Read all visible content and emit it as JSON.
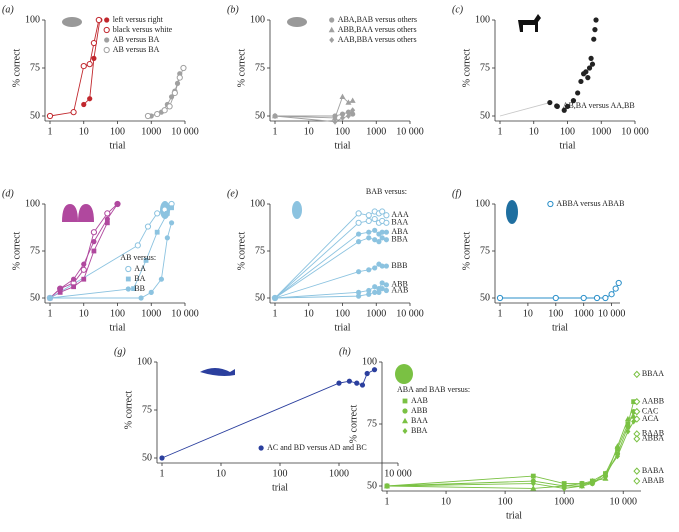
{
  "chart_data": [
    {
      "type": "line",
      "panel_label": "(a)",
      "x_label": "trial",
      "y_label": "% correct",
      "xscale": "log",
      "xlim": [
        1,
        10000
      ],
      "xticks": [
        1,
        10,
        100,
        1000,
        {
          "value": 10000,
          "label": "10 000"
        }
      ],
      "ylim": [
        50,
        100
      ],
      "yticks": [
        50,
        75,
        100
      ],
      "legend": "upper-right",
      "series": [
        {
          "name": "left versus right",
          "color": "#c1272d",
          "marker": "circle",
          "x": [
            10,
            15,
            20,
            30
          ],
          "values": [
            56,
            59,
            80,
            100
          ]
        },
        {
          "name": "black versus white",
          "color": "#c1272d",
          "marker": "open-circle",
          "x": [
            1,
            5,
            10,
            15,
            20,
            28
          ],
          "values": [
            50,
            52,
            76,
            77,
            88,
            100
          ]
        },
        {
          "name": "AB versus BA",
          "color": "#a0a0a0",
          "marker": "circle",
          "x": [
            1000,
            2000,
            3000,
            4000,
            5000,
            6000,
            7000
          ],
          "values": [
            50,
            52,
            56,
            60,
            63,
            67,
            72
          ]
        },
        {
          "name": "AB versus BA",
          "color": "#a0a0a0",
          "marker": "open-circle",
          "x": [
            800,
            1500,
            2500,
            3500,
            5000,
            7000,
            9000
          ],
          "values": [
            50,
            51,
            53,
            55,
            62,
            70,
            75
          ]
        }
      ]
    },
    {
      "type": "line",
      "panel_label": "(b)",
      "x_label": "trial",
      "y_label": "% correct",
      "xscale": "log",
      "xlim": [
        1,
        10000
      ],
      "xticks": [
        1,
        10,
        100,
        1000,
        {
          "value": 10000,
          "label": "10 000"
        }
      ],
      "ylim": [
        50,
        100
      ],
      "yticks": [
        50,
        75,
        100
      ],
      "legend": "upper-right",
      "series": [
        {
          "name": "ABA,BAB versus others",
          "color": "#a0a0a0",
          "marker": "circle",
          "x": [
            1,
            60,
            100,
            150,
            200
          ],
          "values": [
            50,
            50,
            51,
            52,
            51
          ]
        },
        {
          "name": "ABB,BAA versus others",
          "color": "#a0a0a0",
          "marker": "triangle",
          "x": [
            1,
            60,
            100,
            150,
            200
          ],
          "values": [
            50,
            49,
            60,
            57,
            58
          ]
        },
        {
          "name": "AAB,BBA versus others",
          "color": "#a0a0a0",
          "marker": "diamond",
          "x": [
            1,
            60,
            100,
            150,
            200
          ],
          "values": [
            50,
            47,
            49,
            50,
            53
          ]
        }
      ]
    },
    {
      "type": "line",
      "panel_label": "(c)",
      "x_label": "trial",
      "y_label": "% correct",
      "xscale": "log",
      "xlim": [
        1,
        10000
      ],
      "xticks": [
        1,
        10,
        100,
        1000,
        {
          "value": 10000,
          "label": "10 000"
        }
      ],
      "ylim": [
        50,
        100
      ],
      "yticks": [
        50,
        75,
        100
      ],
      "legend": "lower-right",
      "series": [
        {
          "color": "#c8c8c8",
          "marker": "none",
          "x": [
            1,
            30
          ],
          "values": [
            50,
            57
          ]
        },
        {
          "name": "AB,BA versus AA,BB",
          "color": "#222222",
          "marker": "circle",
          "line": false,
          "x": [
            30,
            50,
            80,
            100,
            150,
            200,
            250,
            300,
            350,
            400,
            450,
            500,
            550,
            600,
            650,
            700
          ],
          "values": [
            57,
            55,
            53,
            55,
            58,
            62,
            68,
            72,
            73,
            70,
            75,
            80,
            77,
            90,
            95,
            100
          ]
        }
      ]
    },
    {
      "type": "line",
      "panel_label": "(d)",
      "x_label": "trial",
      "y_label": "% correct",
      "xscale": "log",
      "xlim": [
        1,
        10000
      ],
      "xticks": [
        1,
        10,
        100,
        1000,
        {
          "value": 10000,
          "label": "10 000"
        }
      ],
      "ylim": [
        50,
        100
      ],
      "yticks": [
        50,
        75,
        100
      ],
      "legend": "lower-right",
      "legend_title": "AB versus:",
      "series": [
        {
          "color": "#b0489e",
          "marker": "open-circle",
          "x": [
            1,
            2,
            5,
            10,
            20,
            50,
            100
          ],
          "values": [
            50,
            55,
            58,
            65,
            85,
            95,
            100
          ]
        },
        {
          "color": "#b0489e",
          "marker": "circle",
          "x": [
            1,
            2,
            5,
            10,
            20,
            50,
            100
          ],
          "values": [
            50,
            55,
            60,
            68,
            80,
            92,
            100
          ]
        },
        {
          "color": "#b0489e",
          "marker": "square",
          "x": [
            1,
            2,
            5,
            10,
            20,
            50
          ],
          "values": [
            50,
            53,
            56,
            60,
            75,
            90
          ]
        },
        {
          "name": "AA",
          "color": "#8cc3e0",
          "marker": "open-circle",
          "x": [
            1,
            400,
            800,
            1500,
            2500,
            4000
          ],
          "values": [
            50,
            78,
            88,
            95,
            97,
            100
          ]
        },
        {
          "name": "BA",
          "color": "#8cc3e0",
          "marker": "square",
          "x": [
            1,
            300,
            700,
            1500,
            3000,
            4000
          ],
          "values": [
            50,
            55,
            70,
            85,
            95,
            98
          ]
        },
        {
          "name": "BB",
          "color": "#8cc3e0",
          "marker": "circle",
          "x": [
            1,
            500,
            1000,
            2000,
            3000,
            4000
          ],
          "values": [
            50,
            50,
            53,
            60,
            82,
            90
          ]
        }
      ]
    },
    {
      "type": "line",
      "panel_label": "(e)",
      "x_label": "trial",
      "y_label": "% correct",
      "xscale": "log",
      "xlim": [
        1,
        10000
      ],
      "xticks": [
        1,
        10,
        100,
        1000,
        {
          "value": 10000,
          "label": "10 000"
        }
      ],
      "ylim": [
        50,
        100
      ],
      "yticks": [
        50,
        75,
        100
      ],
      "legend_title": "BAB versus:",
      "series_labels": "end",
      "series": [
        {
          "name": "AAA",
          "color": "#8cc3e0",
          "marker": "open-circle",
          "x": [
            1,
            300,
            600,
            900,
            1200,
            1500,
            2000
          ],
          "values": [
            50,
            95,
            94,
            96,
            95,
            96,
            94
          ]
        },
        {
          "name": "BAA",
          "color": "#8cc3e0",
          "marker": "open-circle",
          "x": [
            1,
            300,
            600,
            900,
            1200,
            1500,
            2000
          ],
          "values": [
            50,
            90,
            91,
            92,
            90,
            91,
            90
          ]
        },
        {
          "name": "ABA",
          "color": "#8cc3e0",
          "marker": "circle",
          "x": [
            1,
            300,
            600,
            900,
            1200,
            1500,
            2000
          ],
          "values": [
            50,
            84,
            85,
            86,
            84,
            85,
            85
          ]
        },
        {
          "name": "BBA",
          "color": "#8cc3e0",
          "marker": "circle",
          "x": [
            1,
            300,
            600,
            900,
            1200,
            1500,
            2000
          ],
          "values": [
            50,
            80,
            82,
            81,
            80,
            82,
            81
          ]
        },
        {
          "name": "BBB",
          "color": "#8cc3e0",
          "marker": "circle",
          "x": [
            1,
            300,
            600,
            900,
            1200,
            1500,
            2000
          ],
          "values": [
            50,
            64,
            65,
            66,
            68,
            67,
            67
          ]
        },
        {
          "name": "ABB",
          "color": "#8cc3e0",
          "marker": "circle",
          "x": [
            1,
            300,
            600,
            900,
            1200,
            1500,
            2000
          ],
          "values": [
            50,
            53,
            54,
            56,
            55,
            58,
            57
          ]
        },
        {
          "name": "AAB",
          "color": "#8cc3e0",
          "marker": "circle",
          "x": [
            1,
            300,
            600,
            900,
            1200,
            1500,
            2000
          ],
          "values": [
            50,
            51,
            52,
            53,
            53,
            55,
            54
          ]
        }
      ]
    },
    {
      "type": "line",
      "panel_label": "(f)",
      "x_label": "trial",
      "y_label": "% correct",
      "xscale": "log",
      "xlim": [
        1,
        20000
      ],
      "xticks": [
        1,
        10,
        100,
        1000,
        {
          "value": 10000,
          "label": "10 000"
        }
      ],
      "ylim": [
        50,
        100
      ],
      "yticks": [
        50,
        75,
        100
      ],
      "legend": "upper-right",
      "series": [
        {
          "name": "ABBA versus ABAB",
          "color": "#2a8fc9",
          "marker": "open-circle",
          "x": [
            1,
            100,
            1000,
            3000,
            6000,
            10000,
            14000,
            18000
          ],
          "values": [
            50,
            50,
            50,
            50,
            50,
            52,
            55,
            58
          ]
        }
      ]
    },
    {
      "type": "line",
      "panel_label": "(g)",
      "x_label": "trial",
      "y_label": "% correct",
      "xscale": "log",
      "xlim": [
        1,
        10000
      ],
      "xticks": [
        1,
        10,
        100,
        1000,
        {
          "value": 10000,
          "label": "10 000"
        }
      ],
      "ylim": [
        50,
        100
      ],
      "yticks": [
        50,
        75,
        100
      ],
      "legend": "lower-right",
      "series": [
        {
          "name": "AC and BD versus AD and BC",
          "color": "#2b3f9e",
          "marker": "circle",
          "x": [
            1,
            1000,
            1500,
            2000,
            2500,
            3000,
            4000
          ],
          "values": [
            50,
            89,
            90,
            89,
            88,
            94,
            96
          ]
        }
      ]
    },
    {
      "type": "line",
      "panel_label": "(h)",
      "x_label": "trial",
      "y_label": "% correct",
      "xscale": "log",
      "xlim": [
        1,
        20000
      ],
      "xticks": [
        1,
        10,
        100,
        1000,
        {
          "value": 10000,
          "label": "10 000"
        }
      ],
      "ylim": [
        50,
        100
      ],
      "yticks": [
        50,
        75,
        100
      ],
      "legend": "upper-left",
      "legend_title": "ABA and BAB versus:",
      "series": [
        {
          "name": "AAB",
          "color": "#7ac143",
          "marker": "square",
          "x": [
            1,
            300,
            1000,
            2000,
            3000,
            5000,
            8000,
            12000,
            15000
          ],
          "values": [
            50,
            54,
            51,
            51,
            52,
            55,
            65,
            75,
            84
          ]
        },
        {
          "name": "ABB",
          "color": "#7ac143",
          "marker": "circle",
          "x": [
            1,
            300,
            1000,
            2000,
            3000,
            5000,
            8000,
            12000,
            15000
          ],
          "values": [
            50,
            52,
            50,
            51,
            51,
            54,
            63,
            74,
            80
          ]
        },
        {
          "name": "BAA",
          "color": "#7ac143",
          "marker": "triangle",
          "x": [
            1,
            300,
            1000,
            2000,
            3000,
            5000,
            8000,
            12000,
            15000
          ],
          "values": [
            50,
            49,
            50,
            50,
            52,
            53,
            66,
            77,
            78
          ]
        },
        {
          "name": "BBA",
          "color": "#7ac143",
          "marker": "diamond",
          "x": [
            1,
            300,
            1000,
            2000,
            3000,
            5000,
            8000,
            12000,
            15000
          ],
          "values": [
            50,
            51,
            49,
            50,
            51,
            55,
            62,
            72,
            76
          ]
        }
      ],
      "points": [
        {
          "label": "BBAA",
          "x": 17000,
          "y": 95
        },
        {
          "label": "AABB",
          "x": 17000,
          "y": 84
        },
        {
          "label": "CAC",
          "x": 17000,
          "y": 80
        },
        {
          "label": "ACA",
          "x": 17000,
          "y": 77
        },
        {
          "label": "BAAB",
          "x": 17000,
          "y": 71
        },
        {
          "label": "ABBA",
          "x": 17000,
          "y": 69
        },
        {
          "label": "BABA",
          "x": 17000,
          "y": 56
        },
        {
          "label": "ABAB",
          "x": 17000,
          "y": 52
        }
      ]
    }
  ]
}
